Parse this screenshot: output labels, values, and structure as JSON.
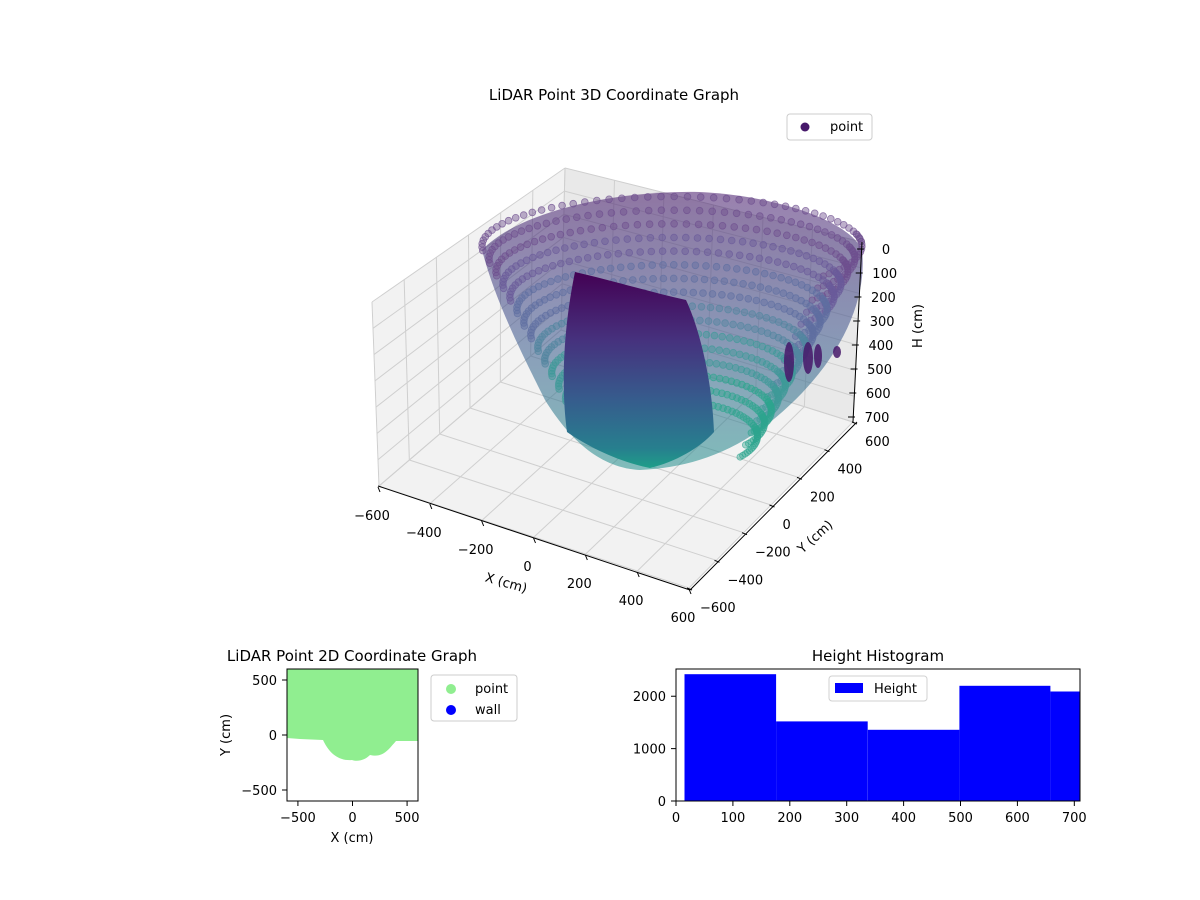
{
  "chart_data": [
    {
      "type": "scatter",
      "projection": "3d",
      "title": "LiDAR Point 3D Coordinate Graph",
      "xlabel": "X (cm)",
      "ylabel": "Y (cm)",
      "zlabel": "H (cm)",
      "xticks": [
        "−600",
        "−400",
        "−200",
        "0",
        "200",
        "400",
        "600"
      ],
      "yticks": [
        "−600",
        "−400",
        "−200",
        "0",
        "200",
        "400",
        "600"
      ],
      "zticks": [
        "0",
        "100",
        "200",
        "300",
        "400",
        "500",
        "600",
        "700"
      ],
      "xlim": [
        -600,
        600
      ],
      "ylim": [
        -600,
        600
      ],
      "zlim": [
        0,
        700
      ],
      "z_inverted": true,
      "grid": true,
      "legend": {
        "placement": "top-right",
        "entries": [
          "point"
        ]
      },
      "series": [
        {
          "name": "point",
          "color": "#46186a",
          "colormap": "viridis"
        }
      ]
    },
    {
      "type": "scatter",
      "title": "LiDAR Point 2D Coordinate Graph",
      "xlabel": "X (cm)",
      "ylabel": "Y (cm)",
      "xticks": [
        "−500",
        "0",
        "500"
      ],
      "yticks": [
        "500",
        "0",
        "−500"
      ],
      "xlim": [
        -600,
        600
      ],
      "ylim": [
        -600,
        600
      ],
      "legend": {
        "placement": "outside-right",
        "entries": [
          "point",
          "wall"
        ]
      },
      "series": [
        {
          "name": "point",
          "color": "#90ee90"
        },
        {
          "name": "wall",
          "color": "#0000ff"
        }
      ]
    },
    {
      "type": "bar",
      "title": "Height Histogram",
      "xticks": [
        "0",
        "100",
        "200",
        "300",
        "400",
        "500",
        "600",
        "700"
      ],
      "yticks": [
        "0",
        "1000",
        "2000"
      ],
      "xlim": [
        0,
        710
      ],
      "ylim": [
        0,
        2520
      ],
      "bin_edges": [
        15,
        176,
        337,
        498,
        658,
        710
      ],
      "values": [
        2420,
        1520,
        1360,
        2200,
        2090
      ],
      "legend": {
        "placement": "top-center",
        "entries": [
          "Height"
        ]
      },
      "series": [
        {
          "name": "Height",
          "color": "#0000ff"
        }
      ]
    }
  ]
}
